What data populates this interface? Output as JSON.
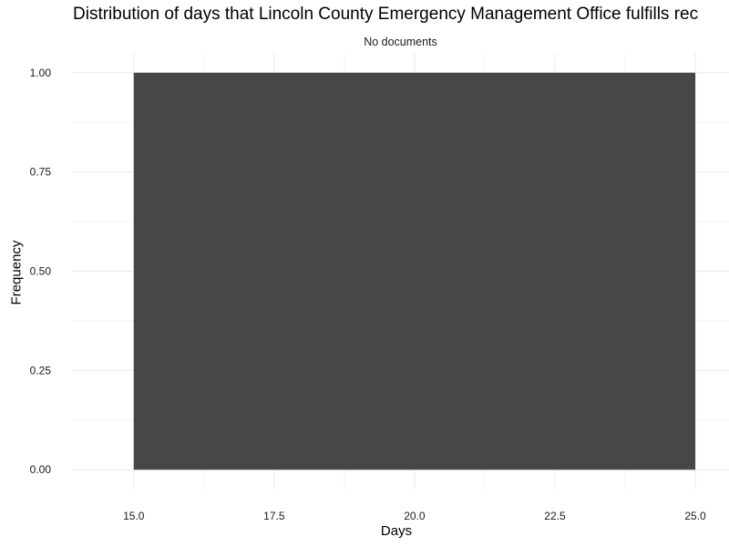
{
  "chart_data": {
    "type": "bar",
    "title": "Distribution of days that Lincoln County Emergency Management Office fulfills rec",
    "subtitle": "No documents",
    "xlabel": "Days",
    "ylabel": "Frequency",
    "xlim": [
      13.9,
      25.6
    ],
    "ylim": [
      -0.05,
      1.05
    ],
    "x_ticks": [
      "15.0",
      "17.5",
      "20.0",
      "22.5",
      "25.0"
    ],
    "y_ticks": [
      "0.00",
      "0.25",
      "0.50",
      "0.75",
      "1.00"
    ],
    "bins": [
      {
        "x_start": 15.0,
        "x_end": 25.0,
        "count": 1
      }
    ],
    "bar_color": "#474747",
    "grid": true,
    "legend": "none"
  }
}
